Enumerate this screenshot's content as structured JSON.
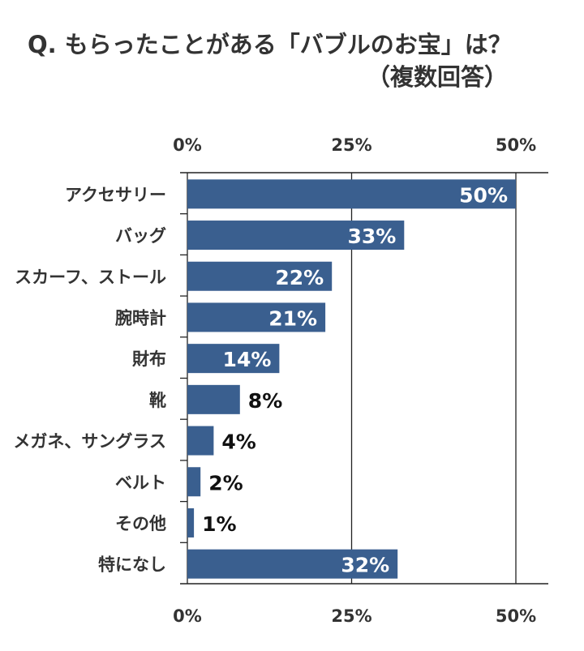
{
  "chart_data": {
    "type": "bar",
    "orientation": "horizontal",
    "title": "Q. もらったことがある「バブルのお宝」は？",
    "subtitle": "（複数回答）",
    "categories": [
      "アクセサリー",
      "バッグ",
      "スカーフ、ストール",
      "腕時計",
      "財布",
      "靴",
      "メガネ、サングラス",
      "ベルト",
      "その他",
      "特になし"
    ],
    "values": [
      50,
      33,
      22,
      21,
      14,
      8,
      4,
      2,
      1,
      32
    ],
    "data_labels": [
      "50%",
      "33%",
      "22%",
      "21%",
      "14%",
      "8%",
      "4%",
      "2%",
      "1%",
      "32%"
    ],
    "xlim": [
      0,
      50
    ],
    "x_ticks": [
      0,
      25,
      50
    ],
    "x_tick_labels": [
      "0%",
      "25%",
      "50%"
    ],
    "x_axis_position": "top and bottom",
    "grid": true,
    "bar_color": "#3a5f8f",
    "inside_label_color": "#ffffff",
    "outside_label_color": "#111111"
  }
}
